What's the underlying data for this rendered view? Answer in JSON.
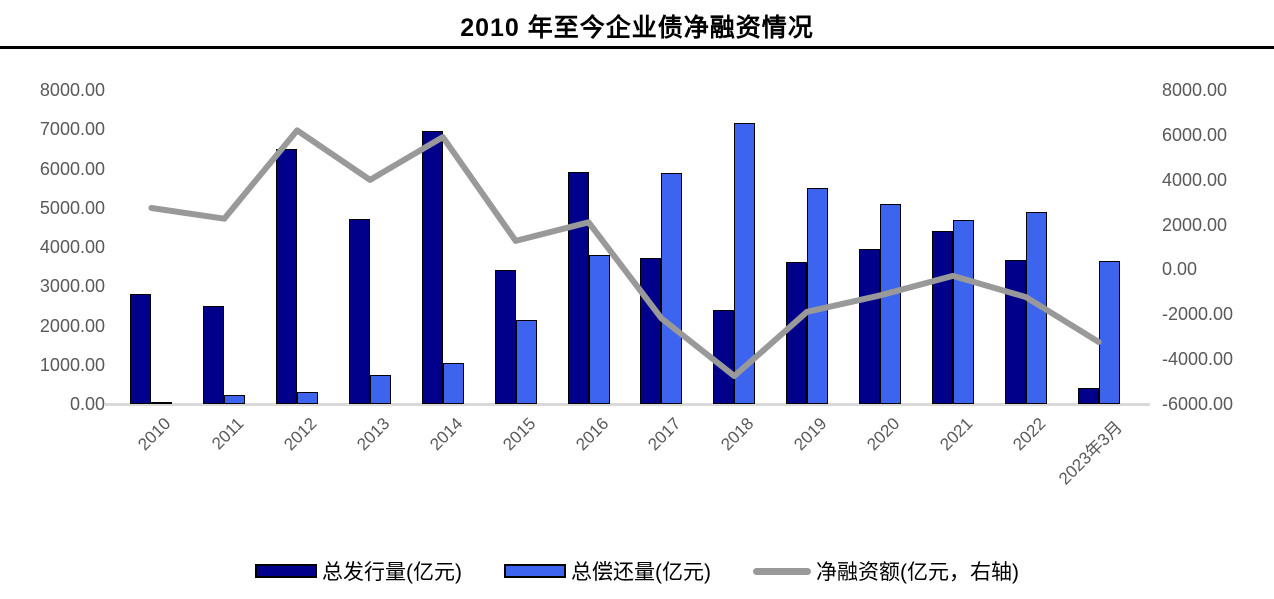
{
  "title": "2010 年至今企业债净融资情况",
  "chart_data": {
    "type": "bar",
    "subtype": "grouped-bars-with-line-overlay",
    "title": "2010 年至今企业债净融资情况",
    "categories": [
      "2010",
      "2011",
      "2012",
      "2013",
      "2014",
      "2015",
      "2016",
      "2017",
      "2018",
      "2019",
      "2020",
      "2021",
      "2022",
      "2023年3月"
    ],
    "series": [
      {
        "name": "总发行量(亿元)",
        "type": "bar",
        "axis": "left",
        "color": "#00008B",
        "values": [
          2800,
          2500,
          6500,
          4720,
          6950,
          3420,
          5900,
          3710,
          2400,
          3620,
          3940,
          4400,
          3660,
          420
        ]
      },
      {
        "name": "总偿还量(亿元)",
        "type": "bar",
        "axis": "left",
        "color": "#3D64EF",
        "values": [
          60,
          240,
          300,
          730,
          1050,
          2150,
          3800,
          5890,
          7150,
          5510,
          5100,
          4690,
          4890,
          3650
        ]
      },
      {
        "name": "净融资额(亿元，右轴)",
        "type": "line",
        "axis": "right",
        "color": "#999999",
        "values": [
          2740,
          2260,
          6200,
          3990,
          5900,
          1270,
          2100,
          -2180,
          -4750,
          -1890,
          -1160,
          -290,
          -1230,
          -3230
        ]
      }
    ],
    "left_axis": {
      "min": 0,
      "max": 8000,
      "step": 1000,
      "ticks": [
        "8000.00",
        "7000.00",
        "6000.00",
        "5000.00",
        "4000.00",
        "3000.00",
        "2000.00",
        "1000.00",
        "0.00"
      ]
    },
    "right_axis": {
      "min": -6000,
      "max": 8000,
      "step": 2000,
      "ticks": [
        "8000.00",
        "6000.00",
        "4000.00",
        "2000.00",
        "0.00",
        "-2000.00",
        "-4000.00",
        "-6000.00"
      ]
    },
    "grid": false,
    "legend_position": "bottom",
    "colors": {
      "bar_outline": "#000000",
      "axis_text": "#595959",
      "baseline": "#D9D9D9",
      "title_divider": "#000000"
    }
  }
}
